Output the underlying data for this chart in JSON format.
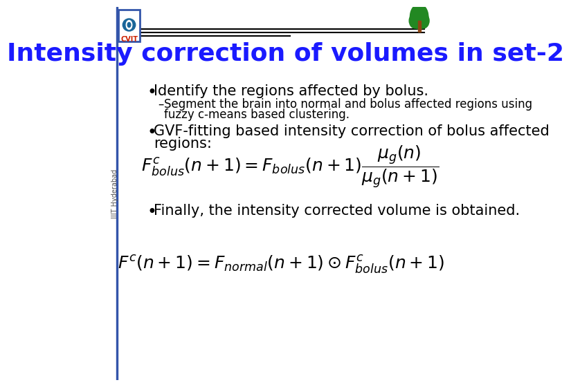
{
  "title": "Intensity correction of volumes in set-2",
  "title_color": "#1a1aff",
  "title_fontsize": 26,
  "bg_color": "#ffffff",
  "bullet1": "Identify the regions affected by bolus.",
  "sub_bullet1a": "Segment the brain into normal and bolus affected regions using",
  "sub_bullet1b": "fuzzy c-means based clustering.",
  "bullet2a": "GVF-fitting based intensity correction of bolus affected",
  "bullet2b": "regions:",
  "bullet3": "Finally, the intensity corrected volume is obtained.",
  "bullet_color": "#000000",
  "text_fontsize": 15,
  "sub_fontsize": 12,
  "formula_fontsize": 18,
  "footer_text": "IIIT Hyderabad",
  "header_line_color": "#000000",
  "left_bar_color": "#3355aa",
  "cvit_border_color": "#3355aa",
  "cvit_eye_color": "#1a6699",
  "cvit_text_color": "#cc2200",
  "tree_color": "#228822",
  "trunk_color": "#8B4513"
}
